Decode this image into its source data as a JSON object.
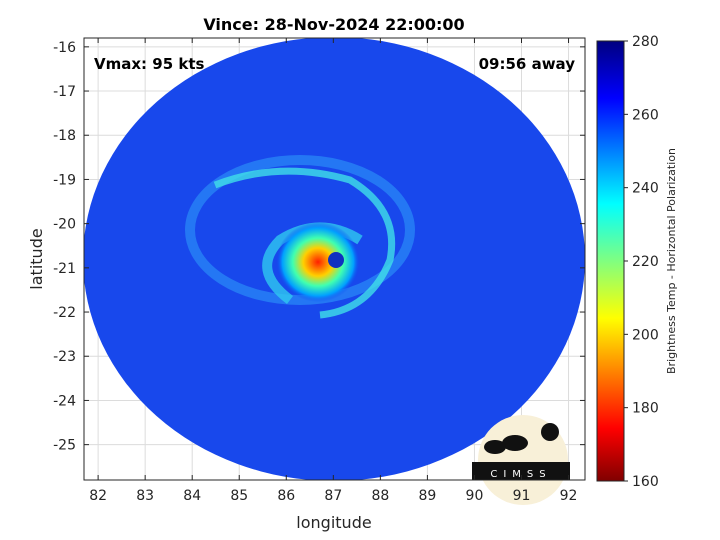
{
  "chart_data": {
    "type": "heatmap",
    "title": "Vince: 28-Nov-2024 22:00:00",
    "xlabel": "longitude",
    "ylabel": "latitude",
    "xlim": [
      81.7,
      92.35
    ],
    "ylim": [
      -25.8,
      -15.8
    ],
    "xticks": [
      82,
      83,
      84,
      85,
      86,
      87,
      88,
      89,
      90,
      91,
      92
    ],
    "yticks": [
      -16,
      -17,
      -18,
      -19,
      -20,
      -21,
      -22,
      -23,
      -24,
      -25
    ],
    "grid": true,
    "storm_center": {
      "lon": 87.0,
      "lat": -21.0
    },
    "annotations": {
      "vmax": "Vmax: 95 kts",
      "time_offset": "09:56 away"
    },
    "colorbar": {
      "label": "Brightness Temp - Horizontal Polarization",
      "range": [
        160,
        280
      ],
      "ticks": [
        280,
        260,
        240,
        220,
        200,
        180,
        160
      ],
      "colormap": "jet"
    },
    "logo_text": "CIMSS"
  }
}
